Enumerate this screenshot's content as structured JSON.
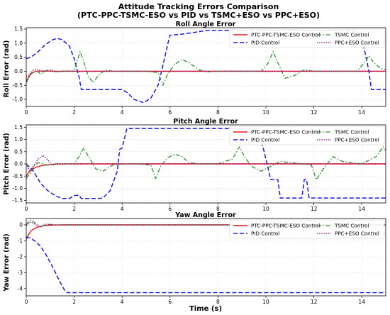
{
  "figure_title": [
    "Attitude Tracking Errors Comparison",
    "(PTC-PPC-TSMC-ESO vs PID vs TSMC+ESO vs PPC+ESO)"
  ],
  "colors": {
    "ptc": "#e41a1c",
    "pid": "#1a1ae6",
    "tsmc": "#2e8b2e",
    "ppc": "#a0007a"
  },
  "chart_data": [
    {
      "type": "line",
      "title": "Roll Angle Error",
      "xlabel": "",
      "ylabel": "Roll Error (rad)",
      "xlim": [
        0,
        15
      ],
      "ylim": [
        -1.25,
        1.55
      ],
      "xticks": [
        "0",
        "2",
        "4",
        "6",
        "8",
        "10",
        "12",
        "14"
      ],
      "xtick_values": [
        0,
        2,
        4,
        6,
        8,
        10,
        12,
        14
      ],
      "yticks": [
        "1.5",
        "1.0",
        "0.5",
        "0.0",
        "-0.5",
        "-1.0"
      ],
      "ytick_values": [
        1.5,
        1.0,
        0.5,
        0.0,
        -0.5,
        -1.0
      ],
      "grid": true,
      "legend": "top-right",
      "series": [
        {
          "name": "PTC-PPC-TSMC-ESO Control",
          "color_key": "ptc",
          "style": "solid",
          "x": [
            0,
            0.1,
            0.2,
            0.35,
            0.5,
            0.7,
            1.0,
            1.5,
            15
          ],
          "y": [
            -0.35,
            -0.2,
            -0.08,
            -0.02,
            0.0,
            0.01,
            0.0,
            0.0,
            0.0
          ]
        },
        {
          "name": "PID Control",
          "color_key": "pid",
          "style": "dashed",
          "x": [
            0,
            0.2,
            0.5,
            0.8,
            1.1,
            1.3,
            1.5,
            1.8,
            2.0,
            2.2,
            2.3,
            3.0,
            4.0,
            4.2,
            4.5,
            4.9,
            5.2,
            5.5,
            5.7,
            5.9,
            6.0,
            6.5,
            7.0,
            7.5,
            8.0,
            8.5,
            9.0,
            9.5,
            10.0,
            10.5,
            11.0,
            11.5,
            12.0,
            12.5,
            13.0,
            13.5,
            13.7,
            13.9,
            14.1,
            14.3,
            14.4,
            15
          ],
          "y": [
            0.45,
            0.5,
            0.7,
            0.95,
            1.12,
            1.17,
            1.12,
            0.9,
            0.45,
            -0.2,
            -0.65,
            -0.65,
            -0.65,
            -0.75,
            -1.0,
            -1.12,
            -0.95,
            -0.5,
            0.2,
            0.95,
            1.28,
            1.32,
            1.38,
            1.45,
            1.45,
            1.45,
            1.45,
            1.45,
            1.45,
            1.45,
            1.45,
            1.45,
            1.45,
            1.45,
            1.45,
            1.45,
            1.45,
            1.3,
            0.8,
            0.0,
            -0.65,
            -0.65
          ]
        },
        {
          "name": "TSMC Control",
          "color_key": "tsmc",
          "style": "dashdot",
          "x": [
            0,
            0.2,
            0.4,
            0.6,
            0.8,
            1.0,
            1.2,
            1.5,
            2.0,
            2.1,
            2.25,
            2.4,
            2.6,
            2.8,
            3.0,
            3.3,
            3.6,
            4.0,
            5.0,
            5.5,
            5.7,
            5.9,
            6.2,
            6.5,
            6.8,
            7.2,
            7.6,
            8.0,
            9.0,
            9.8,
            10.1,
            10.3,
            10.5,
            10.8,
            11.2,
            11.6,
            12.0,
            13.0,
            13.8,
            14.1,
            14.3,
            14.5,
            14.8,
            15
          ],
          "y": [
            -0.4,
            -0.1,
            0.05,
            -0.1,
            0.0,
            0.05,
            -0.02,
            0.0,
            0.0,
            0.3,
            0.7,
            0.35,
            -0.2,
            -0.4,
            -0.15,
            0.05,
            0.0,
            0.0,
            0.0,
            -0.05,
            -0.5,
            -0.1,
            0.25,
            0.42,
            0.3,
            0.05,
            -0.02,
            0.0,
            0.0,
            0.0,
            0.3,
            0.7,
            0.3,
            -0.25,
            -0.15,
            0.05,
            0.0,
            0.0,
            0.0,
            0.3,
            0.55,
            0.3,
            0.1,
            0.05
          ]
        },
        {
          "name": "PPC+ESO Control",
          "color_key": "ppc",
          "style": "dotted",
          "x": [
            0,
            0.15,
            0.3,
            0.5,
            0.7,
            0.9,
            1.1,
            1.3,
            1.6,
            2.0,
            15
          ],
          "y": [
            -0.2,
            -0.1,
            0.05,
            0.06,
            -0.02,
            0.04,
            0.02,
            -0.02,
            0.01,
            0.0,
            0.0
          ]
        }
      ]
    },
    {
      "type": "line",
      "title": "Pitch Angle Error",
      "xlabel": "",
      "ylabel": "Pitch Error (rad)",
      "xlim": [
        0,
        15
      ],
      "ylim": [
        -1.6,
        1.6
      ],
      "xticks": [
        "0",
        "2",
        "4",
        "6",
        "8",
        "10",
        "12",
        "14"
      ],
      "xtick_values": [
        0,
        2,
        4,
        6,
        8,
        10,
        12,
        14
      ],
      "yticks": [
        "1.5",
        "1.0",
        "0.5",
        "0.0",
        "-0.5",
        "-1.0",
        "-1.5"
      ],
      "ytick_values": [
        1.5,
        1.0,
        0.5,
        0.0,
        -0.5,
        -1.0,
        -1.5
      ],
      "grid": true,
      "legend": "top-right",
      "series": [
        {
          "name": "PTC-PPC-TSMC-ESO Control",
          "color_key": "ptc",
          "style": "solid",
          "x": [
            0,
            0.1,
            0.25,
            0.4,
            0.6,
            0.8,
            1.0,
            1.3,
            1.8,
            15
          ],
          "y": [
            -0.5,
            -0.35,
            -0.22,
            -0.14,
            -0.08,
            -0.05,
            -0.03,
            -0.01,
            0.0,
            0.0
          ]
        },
        {
          "name": "PID Control",
          "color_key": "pid",
          "style": "dashed",
          "x": [
            0,
            0.3,
            0.6,
            0.9,
            1.2,
            1.5,
            1.8,
            2.0,
            2.2,
            2.3,
            3.0,
            3.2,
            3.5,
            3.8,
            3.9,
            4.0,
            4.2,
            5.0,
            6.0,
            7.0,
            8.0,
            9.0,
            9.5,
            9.8,
            10.0,
            10.2,
            10.5,
            10.6,
            11.0,
            11.5,
            11.6,
            11.7,
            11.8,
            12.0,
            13.0,
            14.0,
            15
          ],
          "y": [
            0.0,
            -0.3,
            -0.8,
            -1.1,
            -1.3,
            -1.42,
            -1.42,
            -1.3,
            -1.28,
            -1.42,
            -1.42,
            -1.4,
            -1.1,
            -0.3,
            0.6,
            0.65,
            1.45,
            1.45,
            1.45,
            1.45,
            1.45,
            1.45,
            1.45,
            1.0,
            0.2,
            -0.65,
            -0.65,
            -1.4,
            -1.4,
            -1.4,
            -0.65,
            -0.65,
            -1.4,
            -1.4,
            -1.4,
            -1.4,
            -1.4
          ]
        },
        {
          "name": "TSMC Control",
          "color_key": "tsmc",
          "style": "dashdot",
          "x": [
            0,
            0.15,
            0.3,
            0.5,
            0.7,
            0.9,
            1.2,
            1.6,
            2.0,
            2.2,
            2.4,
            2.6,
            2.9,
            3.2,
            3.6,
            4.0,
            4.6,
            5.2,
            5.4,
            5.6,
            5.9,
            6.2,
            6.5,
            6.8,
            7.2,
            8.0,
            8.6,
            8.9,
            9.1,
            9.4,
            9.8,
            10.2,
            10.6,
            11.0,
            11.6,
            11.9,
            12.1,
            12.4,
            12.8,
            13.2,
            14.0,
            14.6,
            14.9,
            15
          ],
          "y": [
            -0.6,
            -0.4,
            -0.1,
            0.05,
            0.0,
            -0.05,
            0.0,
            0.0,
            0.0,
            0.3,
            0.65,
            0.3,
            -0.2,
            -0.3,
            -0.05,
            0.0,
            0.0,
            -0.05,
            -0.6,
            -0.1,
            0.25,
            0.4,
            0.3,
            0.05,
            0.0,
            0.0,
            0.2,
            0.7,
            0.3,
            -0.1,
            -0.3,
            -0.1,
            0.1,
            0.05,
            0.0,
            -0.05,
            -0.65,
            -0.2,
            0.3,
            0.1,
            0.0,
            0.3,
            0.7,
            0.55
          ]
        },
        {
          "name": "PPC+ESO Control",
          "color_key": "ppc",
          "style": "dotted",
          "x": [
            0,
            0.15,
            0.3,
            0.5,
            0.7,
            0.9,
            1.1,
            1.3,
            1.6,
            2.0,
            15
          ],
          "y": [
            0.0,
            -0.3,
            -0.1,
            0.2,
            0.35,
            0.15,
            -0.05,
            0.02,
            0.0,
            0.0,
            0.0
          ]
        }
      ]
    },
    {
      "type": "line",
      "title": "Yaw Angle Error",
      "xlabel": "Time (s)",
      "ylabel": "Yaw Error (rad)",
      "xlim": [
        0,
        15
      ],
      "ylim": [
        -4.45,
        0.4
      ],
      "xticks": [
        "0",
        "2",
        "4",
        "6",
        "8",
        "10",
        "12",
        "14"
      ],
      "xtick_values": [
        0,
        2,
        4,
        6,
        8,
        10,
        12,
        14
      ],
      "yticks": [
        "0",
        "-1",
        "-2",
        "-3",
        "-4"
      ],
      "ytick_values": [
        0,
        -1,
        -2,
        -3,
        -4
      ],
      "grid": true,
      "legend": "top-right",
      "series": [
        {
          "name": "PTC-PPC-TSMC-ESO Control",
          "color_key": "ptc",
          "style": "solid",
          "x": [
            0,
            0.1,
            0.2,
            0.35,
            0.5,
            0.7,
            0.9,
            1.2,
            1.6,
            15
          ],
          "y": [
            -0.9,
            -0.6,
            -0.38,
            -0.22,
            -0.12,
            -0.06,
            -0.03,
            -0.01,
            0.0,
            0.0
          ]
        },
        {
          "name": "PID Control",
          "color_key": "pid",
          "style": "dashed",
          "x": [
            0,
            0.2,
            0.4,
            0.6,
            0.8,
            1.0,
            1.2,
            1.4,
            1.6,
            1.7,
            15
          ],
          "y": [
            -0.75,
            -0.85,
            -1.05,
            -1.35,
            -1.8,
            -2.35,
            -2.95,
            -3.55,
            -4.1,
            -4.25,
            -4.25
          ]
        },
        {
          "name": "TSMC Control",
          "color_key": "tsmc",
          "style": "dashdot",
          "x": [
            0,
            0.15,
            0.3,
            0.45,
            0.6,
            0.8,
            1.0,
            1.3,
            1.8,
            15
          ],
          "y": [
            0.0,
            0.3,
            0.2,
            0.05,
            -0.1,
            -0.02,
            0.03,
            0.0,
            0.0,
            0.0
          ]
        },
        {
          "name": "PPC+ESO Control",
          "color_key": "ppc",
          "style": "dotted",
          "x": [
            0,
            0.15,
            0.3,
            0.45,
            0.6,
            0.8,
            1.0,
            1.3,
            1.8,
            15
          ],
          "y": [
            -0.05,
            0.15,
            0.1,
            -0.05,
            -0.15,
            0.05,
            0.02,
            0.0,
            0.0,
            0.0
          ]
        }
      ]
    }
  ]
}
